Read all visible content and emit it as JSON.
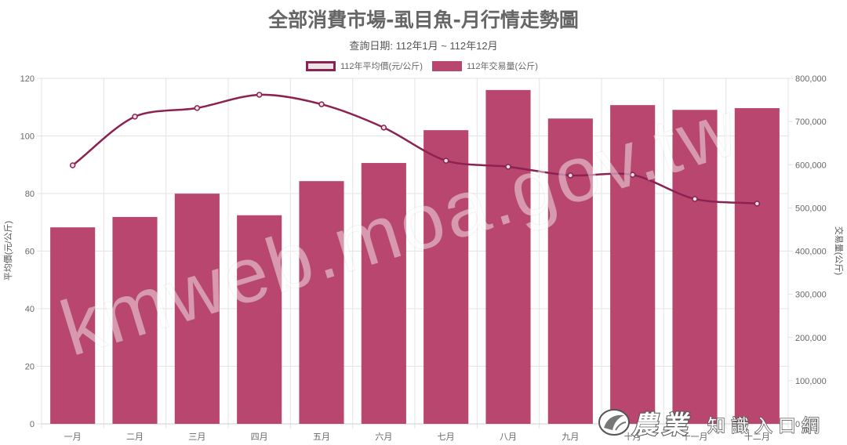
{
  "chart_data": {
    "type": "bar",
    "title": "全部消費市場-虱目魚-月行情走勢圖",
    "subtitle": "查詢日期: 112年1月 ~ 112年12月",
    "categories": [
      "一月",
      "二月",
      "三月",
      "四月",
      "五月",
      "六月",
      "七月",
      "八月",
      "九月",
      "十月",
      "十一月",
      "十二月"
    ],
    "series": [
      {
        "name": "112年平均價(元/公斤)",
        "type": "line",
        "axis": "left",
        "color": "#8c2252",
        "marker_fill": "#ece4e8",
        "values": [
          89.8,
          106.7,
          109.7,
          114.3,
          111.0,
          102.9,
          91.4,
          89.3,
          86.3,
          86.5,
          78.1,
          76.5
        ]
      },
      {
        "name": "112年交易量(公斤)",
        "type": "bar",
        "axis": "right",
        "color": "#b9466e",
        "values": [
          455000,
          479000,
          533000,
          483000,
          562000,
          604000,
          680000,
          773000,
          707000,
          738000,
          727000,
          731000
        ]
      }
    ],
    "y_left": {
      "label": "平均價(元/公斤)",
      "range": [
        0,
        120
      ],
      "ticks": [
        "0",
        "20",
        "40",
        "60",
        "80",
        "100",
        "120"
      ]
    },
    "y_right": {
      "label": "交易量(公斤)",
      "range": [
        0,
        800000
      ],
      "ticks": [
        "0",
        "100,000",
        "200,000",
        "300,000",
        "400,000",
        "500,000",
        "600,000",
        "700,000",
        "800,000"
      ]
    },
    "legend_position": "top",
    "grid": true
  },
  "watermark": {
    "text": "kmweb.moa.gov.tw"
  },
  "logo": {
    "brand": "農業",
    "text": "知識入口網"
  }
}
